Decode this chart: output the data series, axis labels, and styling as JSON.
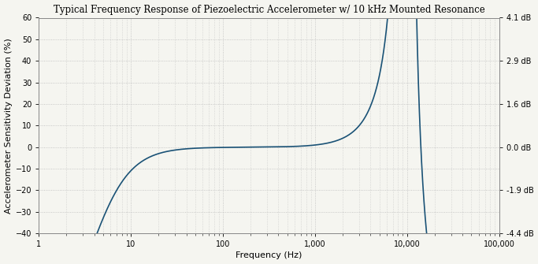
{
  "title": "Typical Frequency Response of Piezoelectric Accelerometer w/ 10 kHz Mounted Resonance",
  "xlabel": "Frequency (Hz)",
  "ylabel": "Accelerometer Sensitivity Deviation (%)",
  "xlim": [
    1,
    100000
  ],
  "ylim": [
    -40,
    60
  ],
  "yticks": [
    -40,
    -30,
    -20,
    -10,
    0,
    10,
    20,
    30,
    40,
    50,
    60
  ],
  "right_ytick_labels": [
    "-4.4 dB",
    "-1.9 dB",
    "0.0 dB",
    "1.6 dB",
    "2.9 dB",
    "4.1 dB"
  ],
  "right_ytick_positions": [
    -40,
    -20,
    0,
    20,
    40,
    60
  ],
  "xtick_labels": [
    "1",
    "10",
    "100",
    "1,000",
    "10,000",
    "100,000"
  ],
  "xtick_positions": [
    1,
    10,
    100,
    1000,
    10000,
    100000
  ],
  "line_color": "#1a5276",
  "background_color": "#f5f5f0",
  "grid_color": "#bbbbbb",
  "title_fontsize": 8.5,
  "axis_label_fontsize": 8,
  "tick_fontsize": 7
}
